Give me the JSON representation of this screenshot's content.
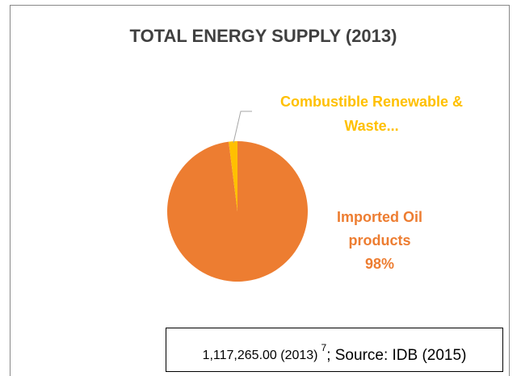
{
  "chart_data": {
    "type": "pie",
    "title": "TOTAL ENERGY SUPPLY (2013)",
    "categories": [
      "Imported Oil products",
      "Combustible Renewable & Waste..."
    ],
    "values": [
      98,
      2
    ],
    "value_labels": [
      "98%",
      null
    ],
    "colors": [
      "#ed7d31",
      "#ffc000"
    ],
    "note": {
      "text": "1,117,265.00 (2013)",
      "superscript": "7",
      "suffix": "; Source: IDB (2015)"
    }
  }
}
